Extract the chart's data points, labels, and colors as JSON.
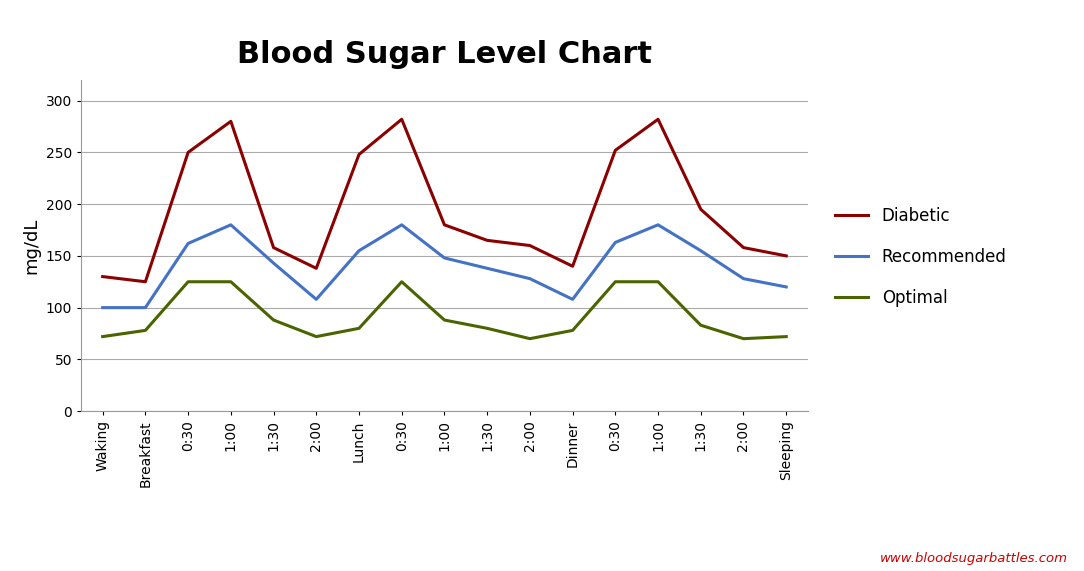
{
  "title": "Blood Sugar Level Chart",
  "ylabel": "mg/dL",
  "x_labels": [
    "Waking",
    "Breakfast",
    "0:30",
    "1:00",
    "1:30",
    "2:00",
    "Lunch",
    "0:30",
    "1:00",
    "1:30",
    "2:00",
    "Dinner",
    "0:30",
    "1:00",
    "1:30",
    "2:00",
    "Sleeping"
  ],
  "diabetic": [
    130,
    125,
    250,
    280,
    158,
    138,
    248,
    282,
    180,
    165,
    160,
    140,
    252,
    282,
    195,
    158,
    150
  ],
  "recommended": [
    100,
    100,
    162,
    180,
    143,
    108,
    155,
    180,
    148,
    138,
    128,
    108,
    163,
    180,
    155,
    128,
    120
  ],
  "optimal": [
    72,
    78,
    125,
    125,
    88,
    72,
    80,
    125,
    88,
    80,
    70,
    78,
    125,
    125,
    83,
    70,
    72
  ],
  "diabetic_color": "#8B0000",
  "recommended_color": "#4472C4",
  "optimal_color": "#4A6400",
  "background_color": "#FFFFFF",
  "grid_color": "#AAAAAA",
  "watermark_text": "www.bloodsugarbattles.com",
  "watermark_color": "#CC0000",
  "ylim": [
    0,
    320
  ],
  "yticks": [
    0,
    50,
    100,
    150,
    200,
    250,
    300
  ],
  "title_fontsize": 22,
  "tick_fontsize": 10,
  "ylabel_fontsize": 13,
  "legend_fontsize": 12,
  "line_width": 2.2,
  "legend_labels": [
    "Diabetic",
    "Recommended",
    "Optimal"
  ]
}
